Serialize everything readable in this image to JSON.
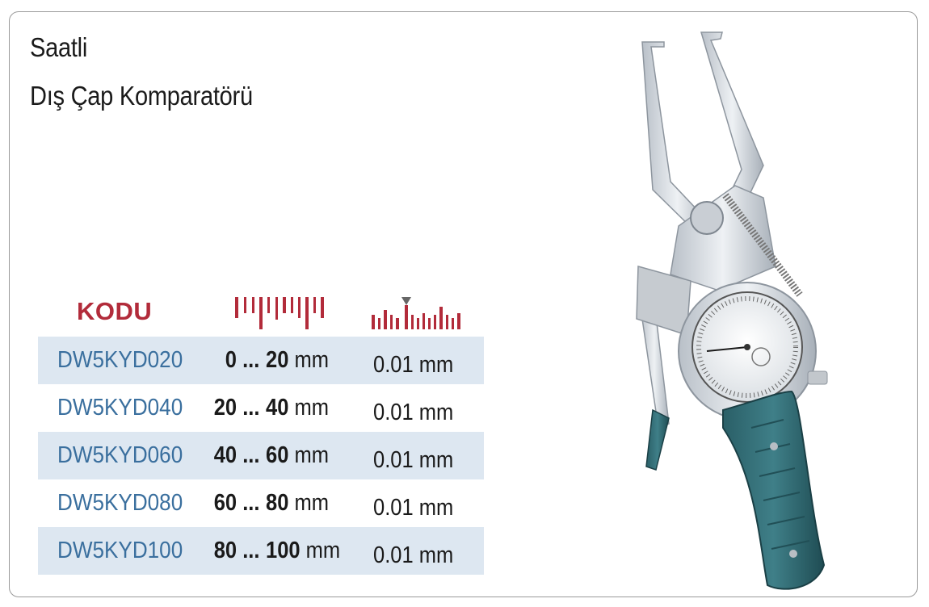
{
  "title": {
    "line1": "Saatli",
    "line2": "Dış Çap Komparatörü"
  },
  "table": {
    "header": {
      "code_label": "KODU",
      "range_icon": "ruler-range-icon",
      "resolution_icon": "ruler-resolution-icon"
    },
    "rows": [
      {
        "code": "DW5KYD020",
        "from": "0 ...",
        "to": "20",
        "unit": "mm",
        "resolution": "0.01 mm"
      },
      {
        "code": "DW5KYD040",
        "from": "20 ...",
        "to": "40",
        "unit": "mm",
        "resolution": "0.01 mm"
      },
      {
        "code": "DW5KYD060",
        "from": "40 ...",
        "to": "60",
        "unit": "mm",
        "resolution": "0.01 mm"
      },
      {
        "code": "DW5KYD080",
        "from": "60 ...",
        "to": "80",
        "unit": "mm",
        "resolution": "0.01 mm"
      },
      {
        "code": "DW5KYD100",
        "from": "80 ...",
        "to": "100",
        "unit": "mm",
        "resolution": "0.01 mm"
      }
    ]
  },
  "colors": {
    "accent_red": "#b22b3a",
    "code_blue": "#3a6f9e",
    "row_shade": "#dde7f1",
    "handle_teal": "#2f6b73"
  }
}
